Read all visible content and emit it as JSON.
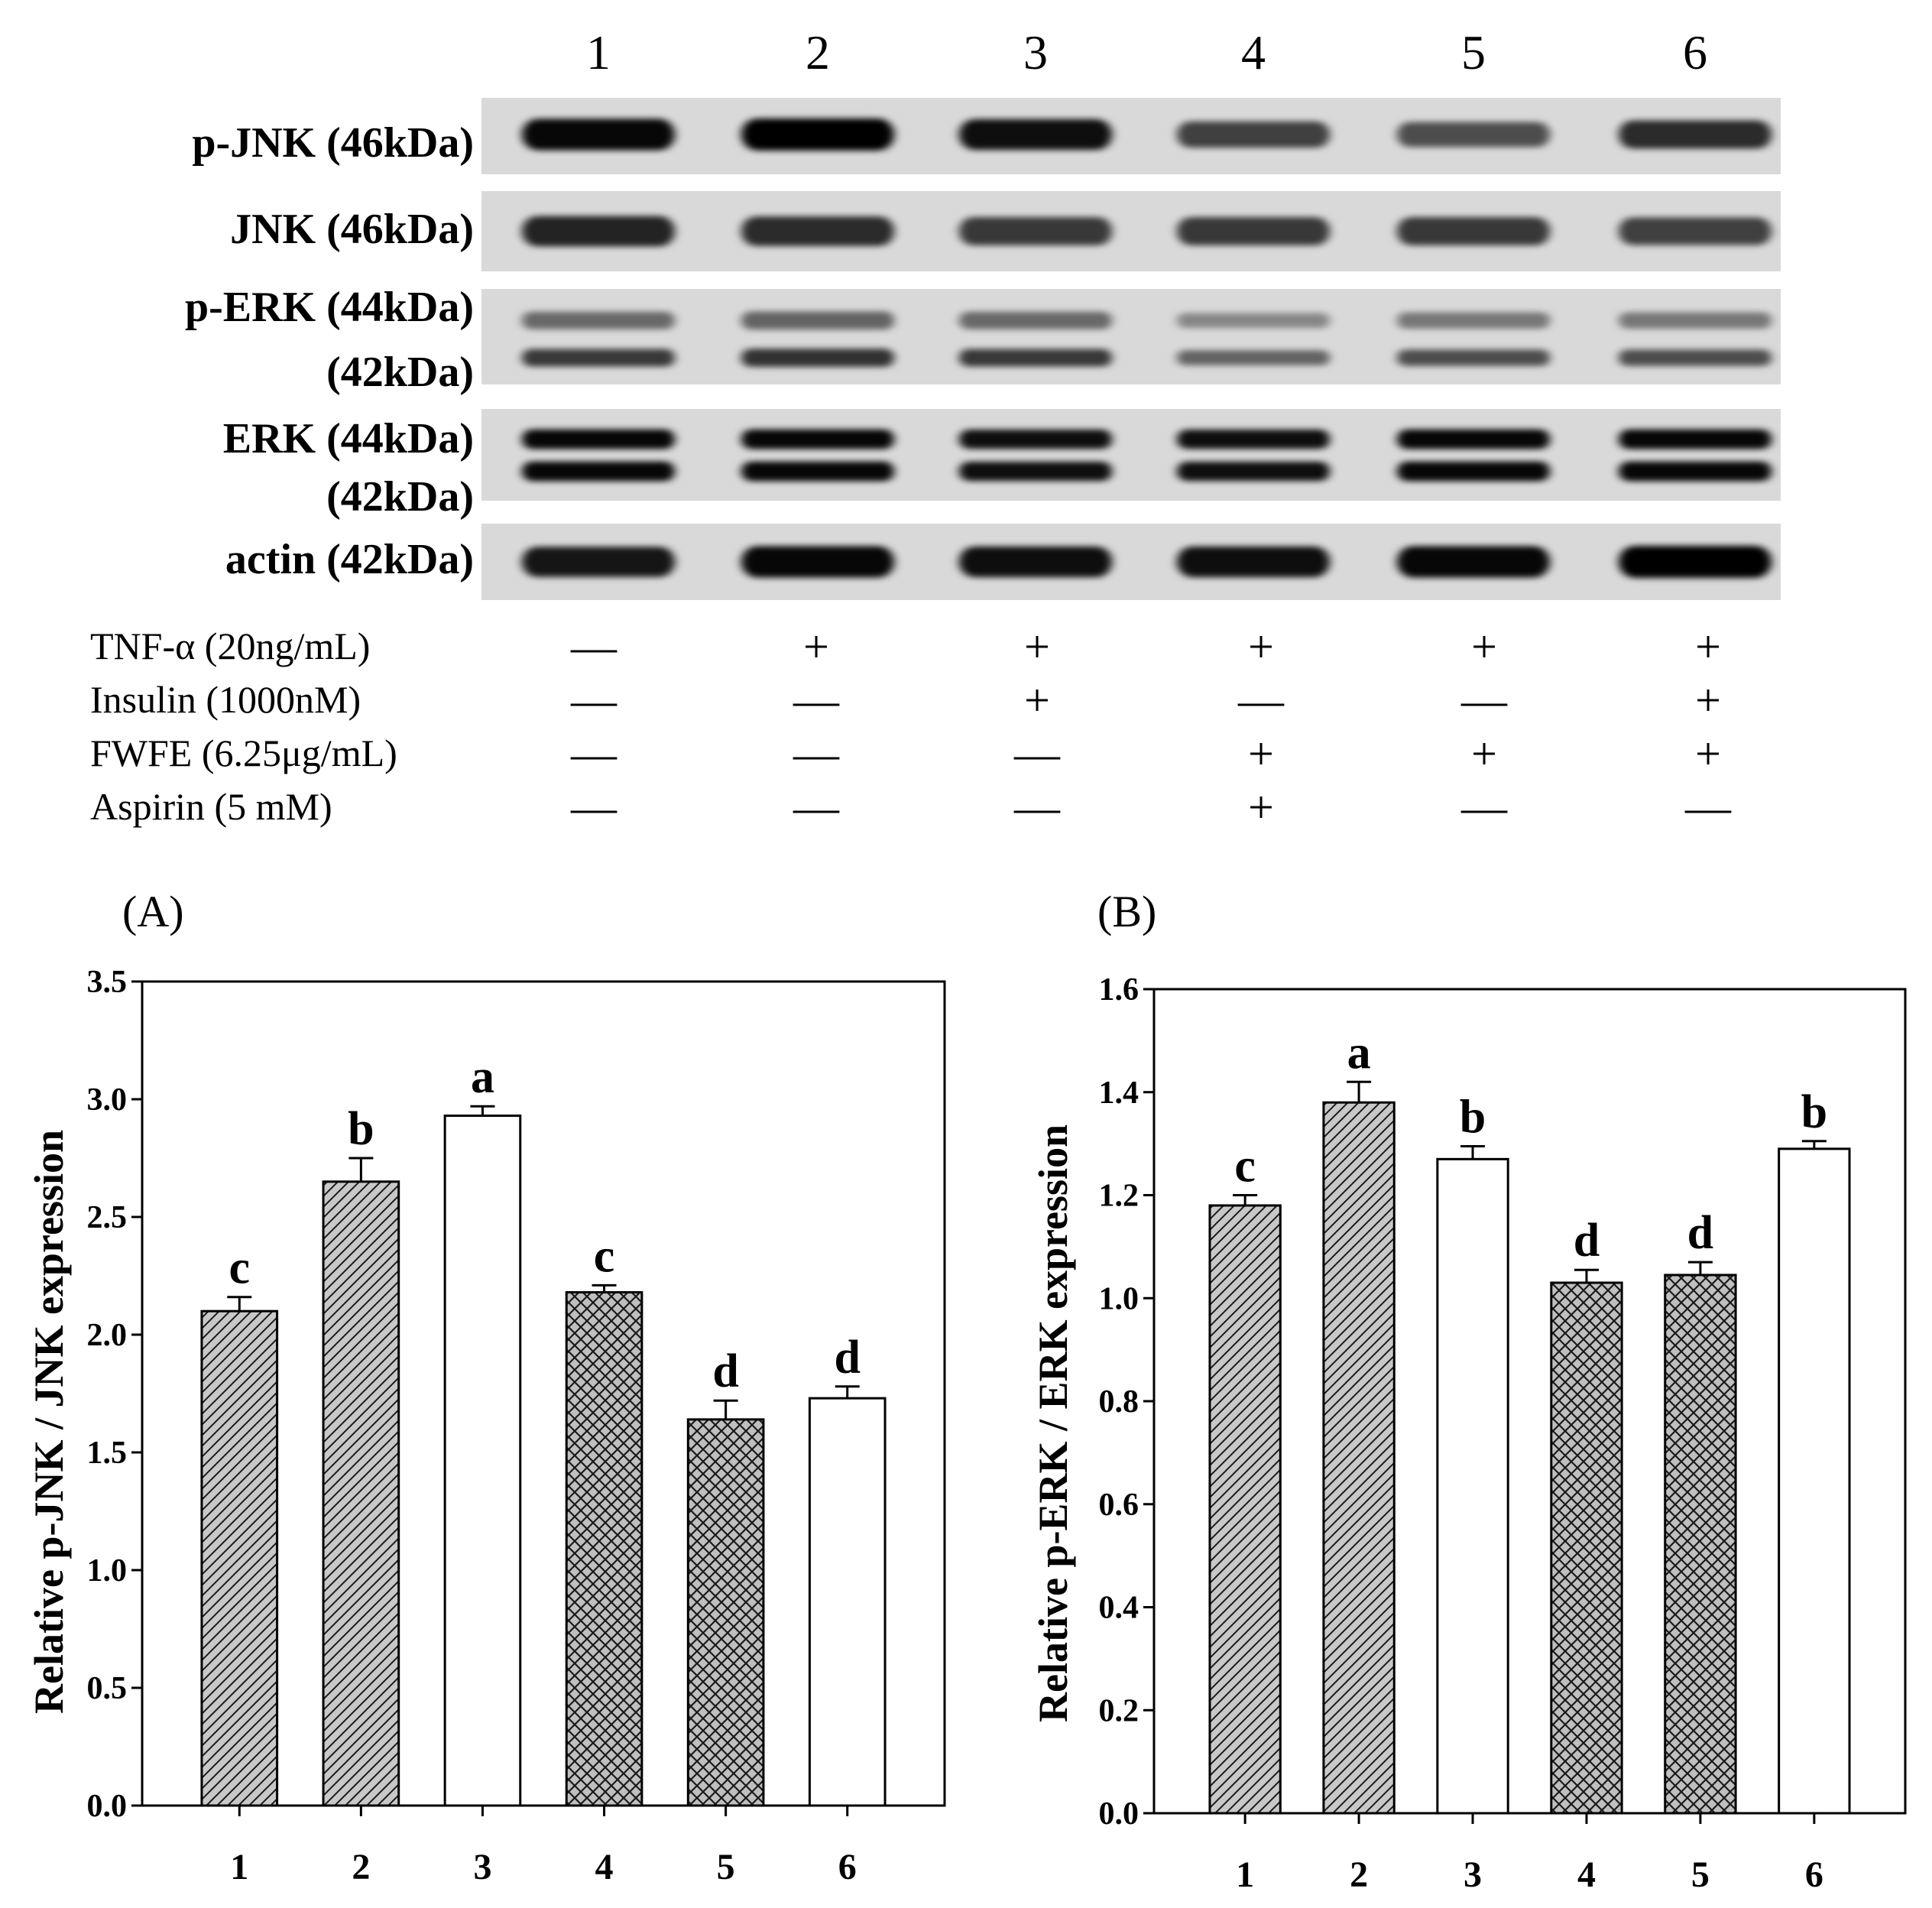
{
  "blot": {
    "lane_labels": [
      "1",
      "2",
      "3",
      "4",
      "5",
      "6"
    ],
    "rows": [
      {
        "label": "p-JNK (46kDa)",
        "band_intensity": [
          0.95,
          1.0,
          0.9,
          0.55,
          0.45,
          0.7
        ]
      },
      {
        "label": "JNK (46kDa)",
        "band_intensity": [
          0.75,
          0.7,
          0.6,
          0.6,
          0.6,
          0.55
        ]
      },
      {
        "label": "p-ERK (44kDa)",
        "label2": "(42kDa)",
        "band_intensity": [
          0.6,
          0.65,
          0.6,
          0.3,
          0.45,
          0.45
        ]
      },
      {
        "label": "ERK (44kDa)",
        "label2": "(42kDa)",
        "band_intensity": [
          0.95,
          0.95,
          0.9,
          0.9,
          0.95,
          0.95
        ]
      },
      {
        "label": "actin (42kDa)",
        "band_intensity": [
          0.85,
          0.95,
          0.9,
          0.9,
          0.95,
          1.0
        ]
      }
    ],
    "treatments": [
      {
        "label": "TNF-α (20ng/mL)",
        "signs": [
          "—",
          "+",
          "+",
          "+",
          "+",
          "+"
        ]
      },
      {
        "label": "Insulin (1000nM)",
        "signs": [
          "—",
          "—",
          "+",
          "—",
          "—",
          "+"
        ]
      },
      {
        "label": "FWFE (6.25μg/mL)",
        "signs": [
          "—",
          "—",
          "—",
          "+",
          "+",
          "+"
        ]
      },
      {
        "label": "Aspirin (5 mM)",
        "signs": [
          "—",
          "—",
          "—",
          "+",
          "—",
          "—"
        ]
      }
    ]
  },
  "chart_data": [
    {
      "type": "bar",
      "panel_label": "(A)",
      "categories": [
        "1",
        "2",
        "3",
        "4",
        "5",
        "6"
      ],
      "values": [
        2.1,
        2.65,
        2.93,
        2.18,
        1.64,
        1.73
      ],
      "errors": [
        0.06,
        0.1,
        0.04,
        0.03,
        0.08,
        0.05
      ],
      "letters": [
        "c",
        "b",
        "a",
        "c",
        "d",
        "d"
      ],
      "patterns": [
        "diagonal",
        "diagonal",
        "open",
        "crosshatch",
        "crosshatch",
        "open"
      ],
      "ylabel": "Relative p-JNK / JNK expression",
      "xlabel": "",
      "ylim": [
        0,
        3.5
      ],
      "yticks": [
        0.0,
        0.5,
        1.0,
        1.5,
        2.0,
        2.5,
        3.0,
        3.5
      ],
      "ytick_labels": [
        "0.0",
        "0.5",
        "1.0",
        "1.5",
        "2.0",
        "2.5",
        "3.0",
        "3.5"
      ],
      "grid": false
    },
    {
      "type": "bar",
      "panel_label": "(B)",
      "categories": [
        "1",
        "2",
        "3",
        "4",
        "5",
        "6"
      ],
      "values": [
        1.18,
        1.38,
        1.27,
        1.03,
        1.045,
        1.29
      ],
      "errors": [
        0.02,
        0.04,
        0.025,
        0.025,
        0.025,
        0.015
      ],
      "letters": [
        "c",
        "a",
        "b",
        "d",
        "d",
        "b"
      ],
      "patterns": [
        "diagonal",
        "diagonal",
        "open",
        "crosshatch",
        "crosshatch",
        "open"
      ],
      "ylabel": "Relative p-ERK / ERK expression",
      "xlabel": "",
      "ylim": [
        0,
        1.6
      ],
      "yticks": [
        0.0,
        0.2,
        0.4,
        0.6,
        0.8,
        1.0,
        1.2,
        1.4,
        1.6
      ],
      "ytick_labels": [
        "0.0",
        "0.2",
        "0.4",
        "0.6",
        "0.8",
        "1.0",
        "1.2",
        "1.4",
        "1.6"
      ],
      "grid": false
    }
  ]
}
